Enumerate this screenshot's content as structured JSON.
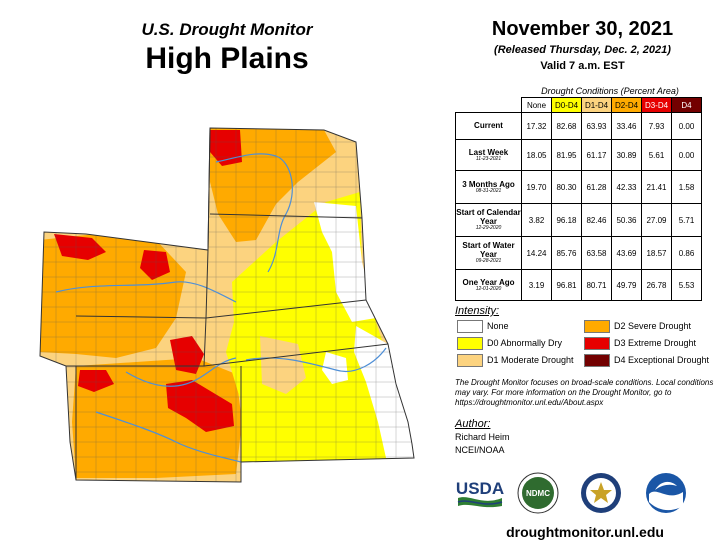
{
  "header": {
    "subtitle": "U.S. Drought Monitor",
    "title": "High Plains"
  },
  "info": {
    "date": "November 30, 2021",
    "released": "(Released Thursday, Dec. 2, 2021)",
    "valid": "Valid 7 a.m. EST"
  },
  "stats_table": {
    "title": "Drought Conditions (Percent Area)",
    "columns": [
      "None",
      "D0-D4",
      "D1-D4",
      "D2-D4",
      "D3-D4",
      "D4"
    ],
    "column_colors": [
      "#ffffff",
      "#ffff00",
      "#fcd37f",
      "#ffaa00",
      "#e60000",
      "#730000"
    ],
    "rows": [
      {
        "label": "Current",
        "date": "",
        "values": [
          "17.32",
          "82.68",
          "63.93",
          "33.46",
          "7.93",
          "0.00"
        ]
      },
      {
        "label": "Last Week",
        "date": "11-23-2021",
        "values": [
          "18.05",
          "81.95",
          "61.17",
          "30.89",
          "5.61",
          "0.00"
        ]
      },
      {
        "label": "3 Months Ago",
        "date": "08-31-2021",
        "values": [
          "19.70",
          "80.30",
          "61.28",
          "42.33",
          "21.41",
          "1.58"
        ]
      },
      {
        "label": "Start of Calendar Year",
        "date": "12-29-2020",
        "values": [
          "3.82",
          "96.18",
          "82.46",
          "50.36",
          "27.09",
          "5.71"
        ]
      },
      {
        "label": "Start of Water Year",
        "date": "09-28-2021",
        "values": [
          "14.24",
          "85.76",
          "63.58",
          "43.69",
          "18.57",
          "0.86"
        ]
      },
      {
        "label": "One Year Ago",
        "date": "12-01-2020",
        "values": [
          "3.19",
          "96.81",
          "80.71",
          "49.79",
          "26.78",
          "5.53"
        ]
      }
    ]
  },
  "legend": {
    "title": "Intensity:",
    "items": [
      {
        "label": "None",
        "color": "#ffffff"
      },
      {
        "label": "D0 Abnormally Dry",
        "color": "#ffff00"
      },
      {
        "label": "D1 Moderate Drought",
        "color": "#fcd37f"
      },
      {
        "label": "D2 Severe Drought",
        "color": "#ffaa00"
      },
      {
        "label": "D3 Extreme Drought",
        "color": "#e60000"
      },
      {
        "label": "D4 Exceptional Drought",
        "color": "#730000"
      }
    ]
  },
  "note": "The Drought Monitor focuses on broad-scale conditions. Local conditions may vary. For more information on the Drought Monitor, go to https://droughtmonitor.unl.edu/About.aspx",
  "author": {
    "title": "Author:",
    "name": "Richard Heim",
    "org": "NCEI/NOAA"
  },
  "logos": {
    "usda": "USDA",
    "ndmc": "NDMC"
  },
  "url": "droughtmonitor.unl.edu",
  "map": {
    "drought_colors": {
      "none": "#ffffff",
      "d0": "#ffff00",
      "d1": "#fcd37f",
      "d2": "#ffaa00",
      "d3": "#e60000",
      "d4": "#730000"
    },
    "river_color": "#4f8fd6"
  }
}
